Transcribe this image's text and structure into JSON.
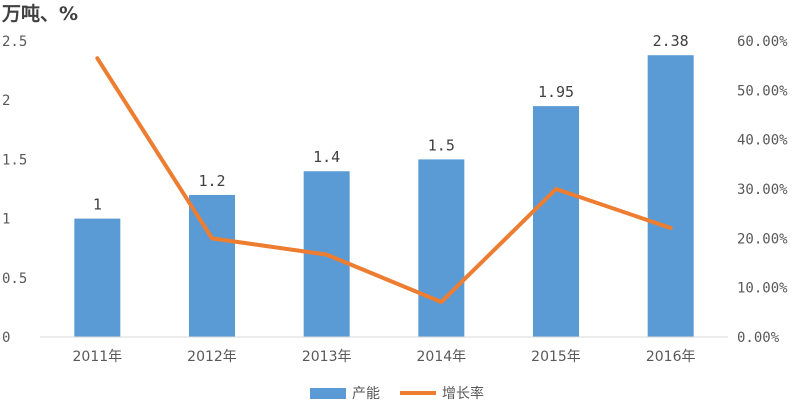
{
  "chart_data": {
    "type": "bar+line",
    "unit_title": "万吨、%",
    "categories": [
      "2011年",
      "2012年",
      "2013年",
      "2014年",
      "2015年",
      "2016年"
    ],
    "series": [
      {
        "name": "产能",
        "type": "bar",
        "axis": "left",
        "color": "#5B9BD5",
        "values": [
          1,
          1.2,
          1.4,
          1.5,
          1.95,
          2.38
        ],
        "value_labels": [
          "1",
          "1.2",
          "1.4",
          "1.5",
          "1.95",
          "2.38"
        ]
      },
      {
        "name": "增长率",
        "type": "line",
        "axis": "right",
        "color": "#ED7D31",
        "values": [
          56.5,
          20.0,
          16.7,
          7.1,
          30.0,
          22.1
        ]
      }
    ],
    "y_left": {
      "min": 0,
      "max": 2.5,
      "step": 0.5,
      "tick_labels": [
        "0",
        "0.5",
        "1",
        "1.5",
        "2",
        "2.5"
      ]
    },
    "y_right": {
      "min": 0,
      "max": 60,
      "step": 10,
      "tick_labels": [
        "0.00%",
        "10.00%",
        "20.00%",
        "30.00%",
        "40.00%",
        "50.00%",
        "60.00%"
      ]
    },
    "grid": false,
    "legend_position": "bottom"
  }
}
